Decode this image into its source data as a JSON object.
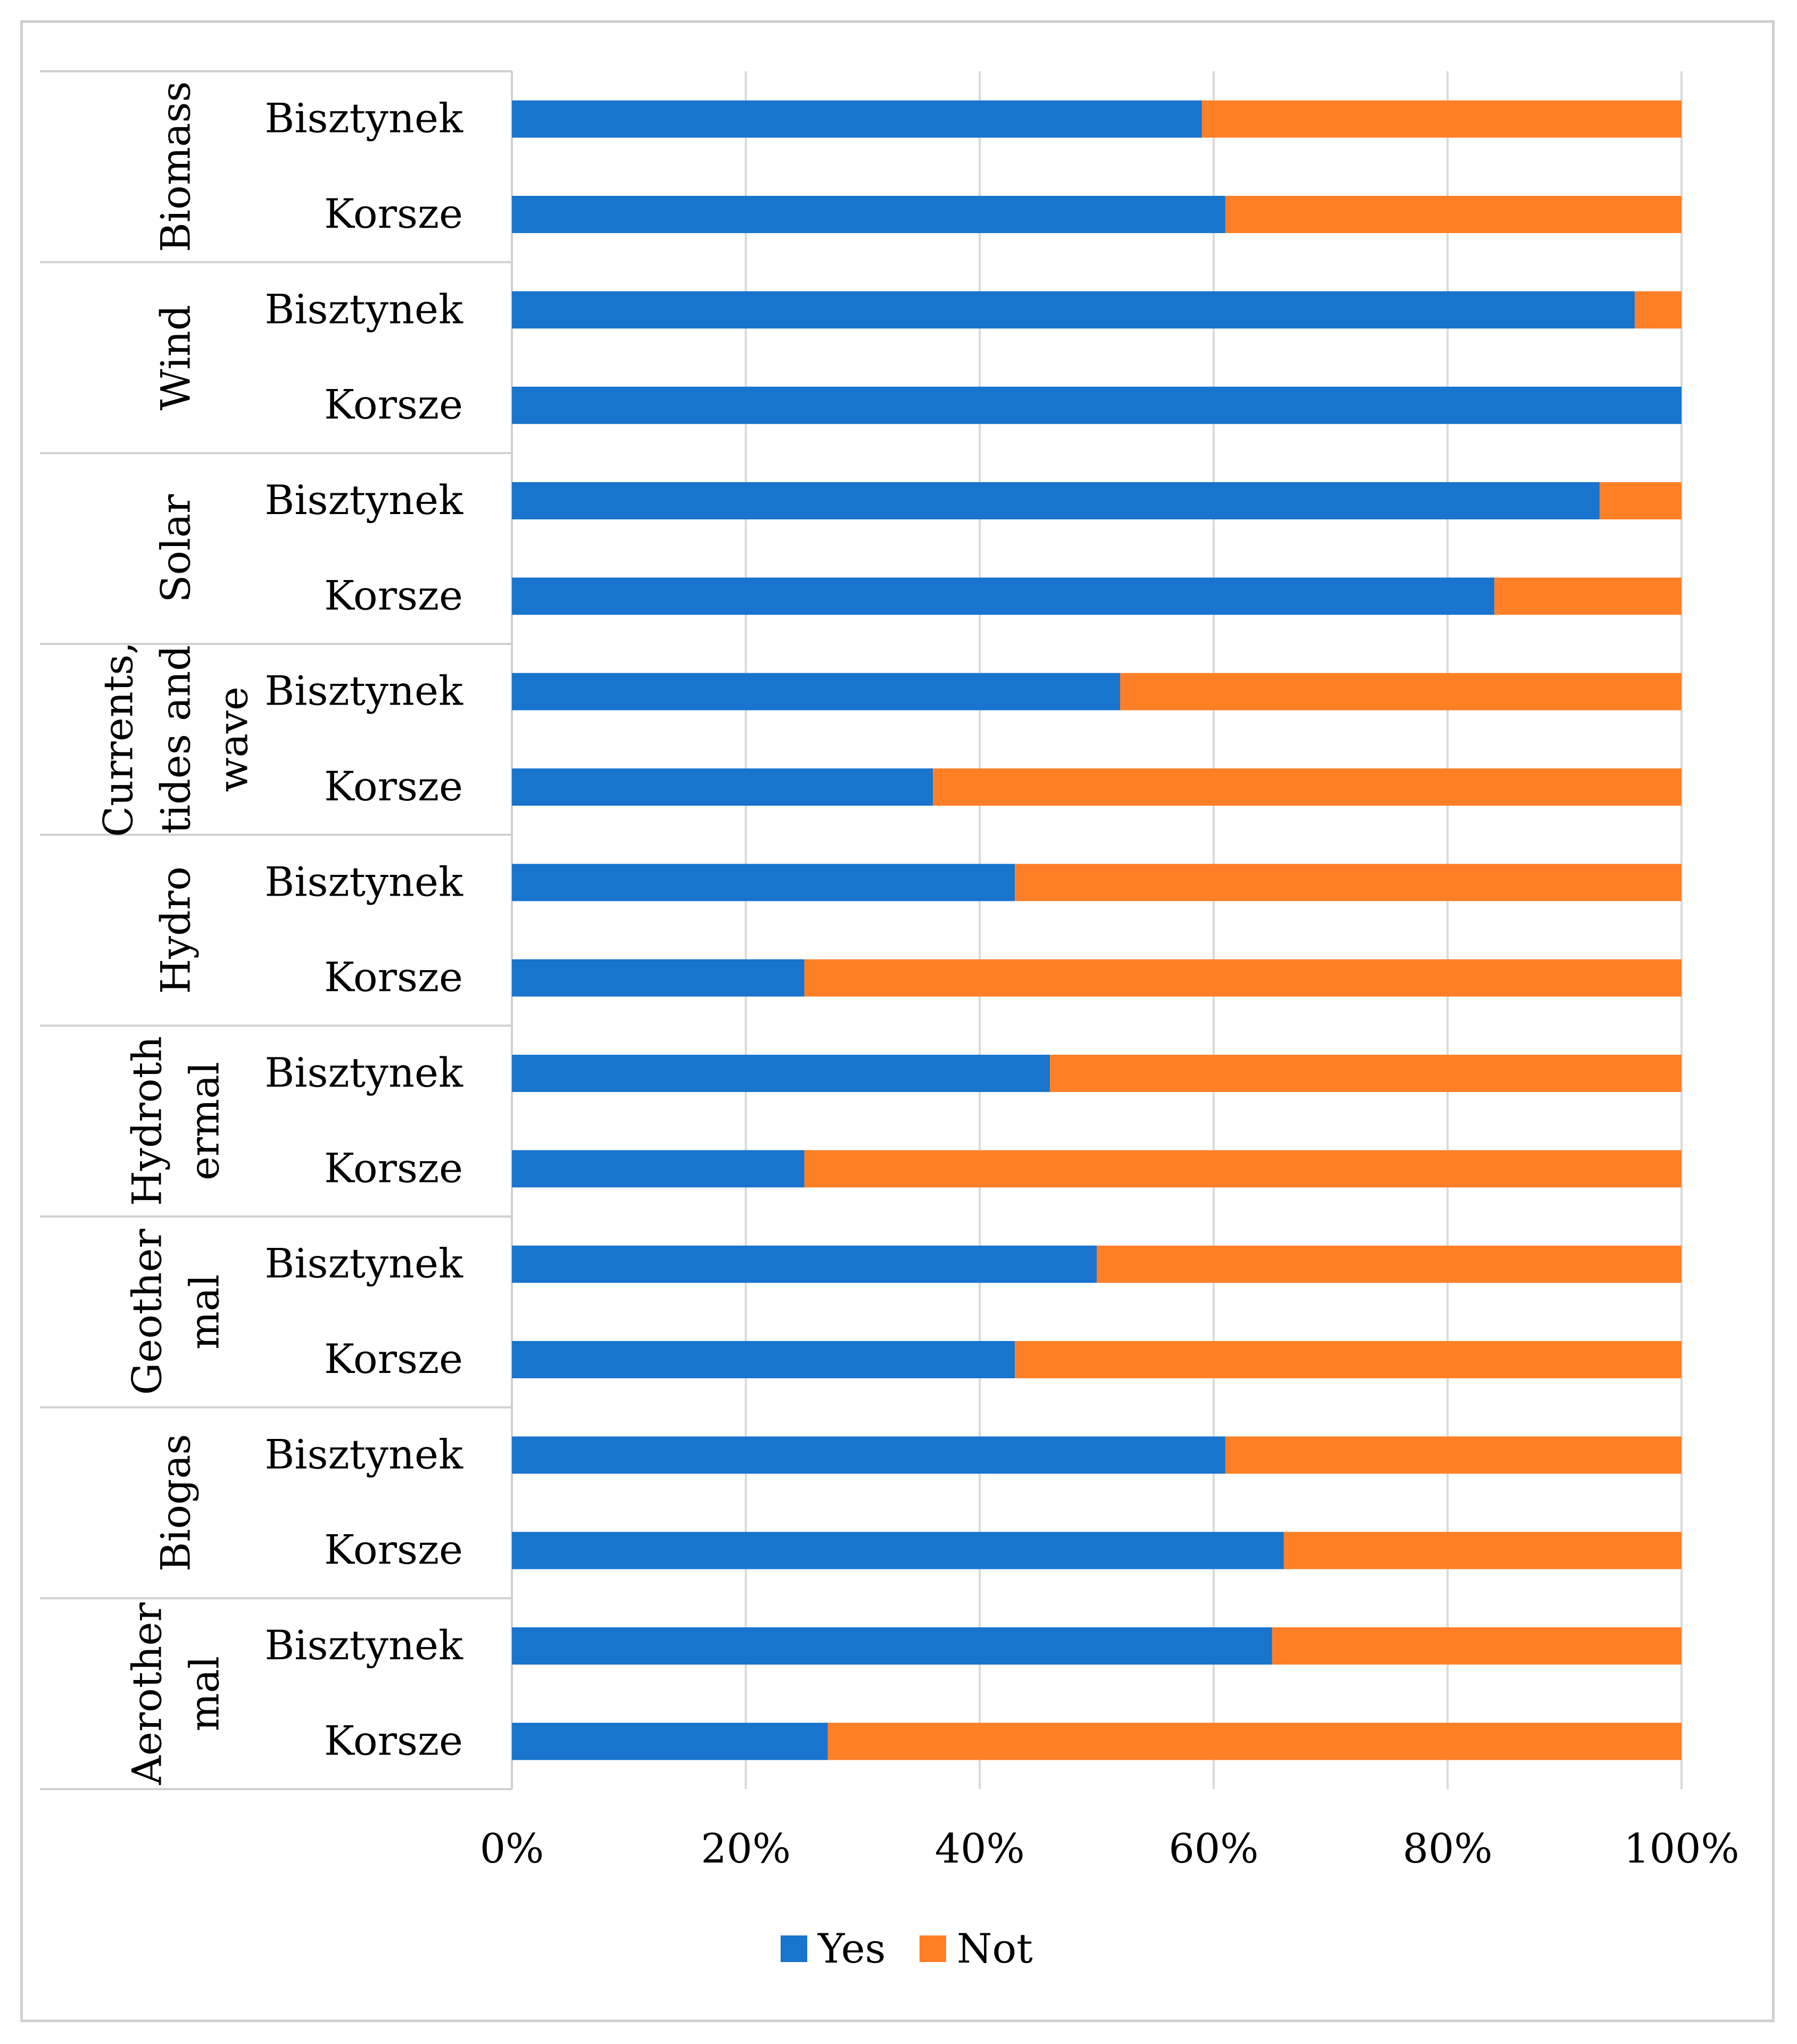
{
  "chart_data": {
    "type": "bar",
    "stacked": true,
    "percent": true,
    "orientation": "horizontal",
    "title": "",
    "xlabel": "",
    "ylabel": "",
    "xlim": [
      0,
      100
    ],
    "x_ticks": [
      "0%",
      "20%",
      "40%",
      "60%",
      "80%",
      "100%"
    ],
    "grid": true,
    "legend_position": "bottom",
    "series": [
      {
        "name": "Yes",
        "color": "#1874cd"
      },
      {
        "name": "Not",
        "color": "#ff7f27"
      }
    ],
    "groups": [
      {
        "name": "Biomass",
        "lines": [
          "Biomass"
        ],
        "rows": [
          {
            "label": "Bisztynek",
            "yes": 59
          },
          {
            "label": "Korsze",
            "yes": 61
          }
        ]
      },
      {
        "name": "Wind",
        "lines": [
          "Wind"
        ],
        "rows": [
          {
            "label": "Bisztynek",
            "yes": 96
          },
          {
            "label": "Korsze",
            "yes": 100
          }
        ]
      },
      {
        "name": "Solar",
        "lines": [
          "Solar"
        ],
        "rows": [
          {
            "label": "Bisztynek",
            "yes": 93
          },
          {
            "label": "Korsze",
            "yes": 84
          }
        ]
      },
      {
        "name": "Currents, tides and wave",
        "lines": [
          "Currents,",
          "tides and",
          "wave"
        ],
        "rows": [
          {
            "label": "Bisztynek",
            "yes": 52
          },
          {
            "label": "Korsze",
            "yes": 36
          }
        ]
      },
      {
        "name": "Hydro",
        "lines": [
          "Hydro"
        ],
        "rows": [
          {
            "label": "Bisztynek",
            "yes": 43
          },
          {
            "label": "Korsze",
            "yes": 25
          }
        ]
      },
      {
        "name": "Hydrothermal",
        "lines": [
          "Hydroth",
          "ermal"
        ],
        "rows": [
          {
            "label": "Bisztynek",
            "yes": 46
          },
          {
            "label": "Korsze",
            "yes": 25
          }
        ]
      },
      {
        "name": "Geothermal",
        "lines": [
          "Geother",
          "mal"
        ],
        "rows": [
          {
            "label": "Bisztynek",
            "yes": 50
          },
          {
            "label": "Korsze",
            "yes": 43
          }
        ]
      },
      {
        "name": "Biogas",
        "lines": [
          "Biogas"
        ],
        "rows": [
          {
            "label": "Bisztynek",
            "yes": 61
          },
          {
            "label": "Korsze",
            "yes": 66
          }
        ]
      },
      {
        "name": "Aerothermal",
        "lines": [
          "Aerother",
          "mal"
        ],
        "rows": [
          {
            "label": "Bisztynek",
            "yes": 65
          },
          {
            "label": "Korsze",
            "yes": 27
          }
        ]
      }
    ]
  }
}
